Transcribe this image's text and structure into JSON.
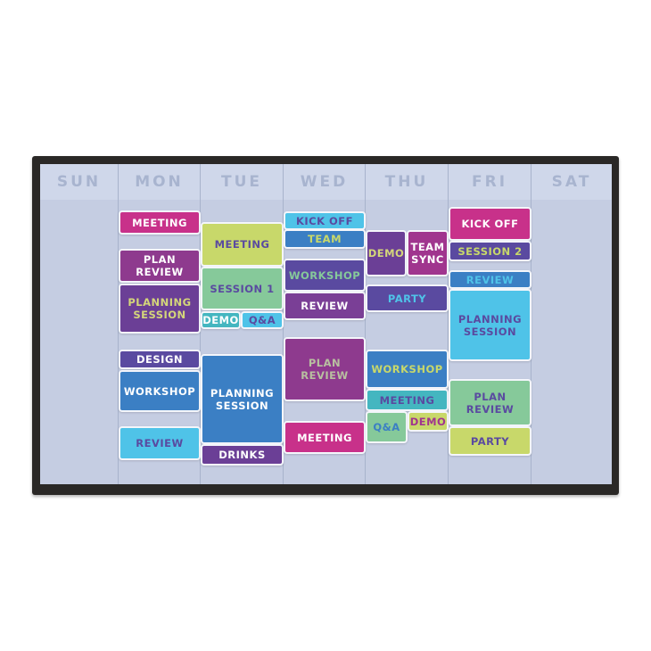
{
  "days": [
    "SUN",
    "MON",
    "TUE",
    "WED",
    "THU",
    "FRI",
    "SAT"
  ],
  "events": [
    {
      "day": "MON",
      "label": "MEETING",
      "bg": "#c8318a",
      "fg": "#ffffff"
    },
    {
      "day": "MON",
      "label": "PLAN REVIEW",
      "bg": "#8e3a8e",
      "fg": "#ffffff"
    },
    {
      "day": "MON",
      "label": "PLANNING SESSION",
      "bg": "#6b3f96",
      "fg": "#d4d67a"
    },
    {
      "day": "MON",
      "label": "DESIGN",
      "bg": "#5a4aa0",
      "fg": "#ffffff"
    },
    {
      "day": "MON",
      "label": "WORKSHOP",
      "bg": "#3b7fc4",
      "fg": "#ffffff"
    },
    {
      "day": "MON",
      "label": "REVIEW",
      "bg": "#4fc3e8",
      "fg": "#5a4aa0"
    },
    {
      "day": "TUE",
      "label": "MEETING",
      "bg": "#c8d86a",
      "fg": "#5a4aa0"
    },
    {
      "day": "TUE",
      "label": "SESSION 1",
      "bg": "#86c99a",
      "fg": "#5a4aa0"
    },
    {
      "day": "TUE",
      "label": "DEMO",
      "bg": "#44b6c0",
      "fg": "#ffffff"
    },
    {
      "day": "TUE",
      "label": "Q&A",
      "bg": "#4fc3e8",
      "fg": "#5a4aa0"
    },
    {
      "day": "TUE",
      "label": "PLANNING SESSION",
      "bg": "#3b7fc4",
      "fg": "#ffffff"
    },
    {
      "day": "TUE",
      "label": "DRINKS",
      "bg": "#6b3f96",
      "fg": "#ffffff"
    },
    {
      "day": "WED",
      "label": "KICK OFF",
      "bg": "#4fc3e8",
      "fg": "#5a4aa0"
    },
    {
      "day": "WED",
      "label": "TEAM",
      "bg": "#3b7fc4",
      "fg": "#c8d86a"
    },
    {
      "day": "WED",
      "label": "WORKSHOP",
      "bg": "#5a4aa0",
      "fg": "#86c99a"
    },
    {
      "day": "WED",
      "label": "REVIEW",
      "bg": "#7a3f96",
      "fg": "#ffffff"
    },
    {
      "day": "WED",
      "label": "PLAN REVIEW",
      "bg": "#8e3a8e",
      "fg": "#b8c0a0"
    },
    {
      "day": "WED",
      "label": "MEETING",
      "bg": "#c8318a",
      "fg": "#ffffff"
    },
    {
      "day": "THU",
      "label": "DEMO",
      "bg": "#6b3f96",
      "fg": "#d4d67a"
    },
    {
      "day": "THU",
      "label": "TEAM SYNC",
      "bg": "#a0358e",
      "fg": "#ffffff"
    },
    {
      "day": "THU",
      "label": "PARTY",
      "bg": "#5a4aa0",
      "fg": "#4fc3e8"
    },
    {
      "day": "THU",
      "label": "WORKSHOP",
      "bg": "#3b7fc4",
      "fg": "#c8d86a"
    },
    {
      "day": "THU",
      "label": "MEETING",
      "bg": "#44b6c0",
      "fg": "#5a4aa0"
    },
    {
      "day": "THU",
      "label": "Q&A",
      "bg": "#86c99a",
      "fg": "#3b7fc4"
    },
    {
      "day": "THU",
      "label": "DEMO",
      "bg": "#c8d86a",
      "fg": "#a0358e"
    },
    {
      "day": "FRI",
      "label": "KICK OFF",
      "bg": "#c8318a",
      "fg": "#ffffff"
    },
    {
      "day": "FRI",
      "label": "SESSION 2",
      "bg": "#5a4aa0",
      "fg": "#c8d86a"
    },
    {
      "day": "FRI",
      "label": "REVIEW",
      "bg": "#3b7fc4",
      "fg": "#4fc3e8"
    },
    {
      "day": "FRI",
      "label": "PLANNING SESSION",
      "bg": "#4fc3e8",
      "fg": "#5a4aa0"
    },
    {
      "day": "FRI",
      "label": "PLAN REVIEW",
      "bg": "#86c99a",
      "fg": "#5a4aa0"
    },
    {
      "day": "FRI",
      "label": "PARTY",
      "bg": "#c8d86a",
      "fg": "#5a4aa0"
    }
  ]
}
